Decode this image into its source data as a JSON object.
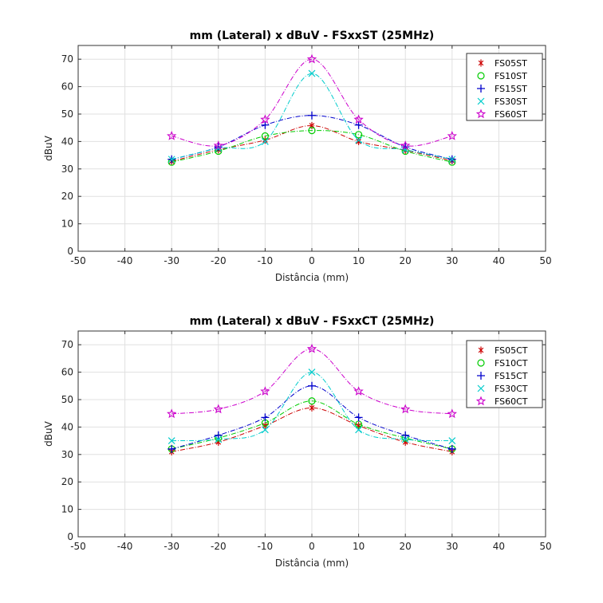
{
  "chart_data": [
    {
      "type": "line",
      "title": "mm (Lateral) x dBuV - FSxxST (25MHz)",
      "xlabel": "Distância (mm)",
      "ylabel": "dBuV",
      "xlim": [
        -50,
        50
      ],
      "ylim": [
        0,
        75
      ],
      "xticks": [
        -50,
        -40,
        -30,
        -20,
        -10,
        0,
        10,
        20,
        30,
        40,
        50
      ],
      "yticks": [
        0,
        10,
        20,
        30,
        40,
        50,
        60,
        70
      ],
      "grid": true,
      "legend_position": "top-right",
      "x": [
        -30,
        -20,
        -10,
        0,
        10,
        20,
        30
      ],
      "series": [
        {
          "name": "FS05ST",
          "values": [
            32.8,
            37.0,
            40.5,
            45.8,
            40.0,
            36.8,
            33.0
          ],
          "color": "#cc0000",
          "marker": "asterisk",
          "dash": "6 2 1 2"
        },
        {
          "name": "FS10ST",
          "values": [
            32.5,
            36.5,
            42.0,
            44.0,
            42.5,
            36.5,
            32.5
          ],
          "color": "#00cc00",
          "marker": "circle",
          "dash": "6 2 1 2"
        },
        {
          "name": "FS15ST",
          "values": [
            33.5,
            38.0,
            46.0,
            49.5,
            46.0,
            38.0,
            33.5
          ],
          "color": "#0000cc",
          "marker": "plus",
          "dash": "6 2 1 2"
        },
        {
          "name": "FS30ST",
          "values": [
            33.5,
            37.5,
            40.0,
            64.8,
            40.5,
            37.0,
            33.5
          ],
          "color": "#00cccc",
          "marker": "x",
          "dash": "6 2 1 2"
        },
        {
          "name": "FS60ST",
          "values": [
            42.0,
            38.5,
            48.0,
            70.0,
            48.0,
            38.5,
            42.0
          ],
          "color": "#cc00cc",
          "marker": "star",
          "dash": "6 2 1 2"
        }
      ]
    },
    {
      "type": "line",
      "title": "mm (Lateral) x dBuV - FSxxCT (25MHz)",
      "xlabel": "Distância (mm)",
      "ylabel": "dBuV",
      "xlim": [
        -50,
        50
      ],
      "ylim": [
        0,
        75
      ],
      "xticks": [
        -50,
        -40,
        -30,
        -20,
        -10,
        0,
        10,
        20,
        30,
        40,
        50
      ],
      "yticks": [
        0,
        10,
        20,
        30,
        40,
        50,
        60,
        70
      ],
      "grid": true,
      "legend_position": "top-right",
      "x": [
        -30,
        -20,
        -10,
        0,
        10,
        20,
        30
      ],
      "series": [
        {
          "name": "FS05CT",
          "values": [
            31.0,
            34.5,
            40.5,
            47.0,
            40.5,
            34.5,
            31.0
          ],
          "color": "#cc0000",
          "marker": "asterisk",
          "dash": "6 2 1 2"
        },
        {
          "name": "FS10CT",
          "values": [
            32.0,
            36.0,
            41.5,
            49.5,
            41.0,
            36.0,
            32.0
          ],
          "color": "#00cc00",
          "marker": "circle",
          "dash": "6 2 1 2"
        },
        {
          "name": "FS15CT",
          "values": [
            32.0,
            37.0,
            43.5,
            55.0,
            43.5,
            37.0,
            32.0
          ],
          "color": "#0000cc",
          "marker": "plus",
          "dash": "6 2 1 2"
        },
        {
          "name": "FS30CT",
          "values": [
            35.0,
            35.5,
            39.0,
            60.0,
            39.0,
            35.5,
            35.0
          ],
          "color": "#00cccc",
          "marker": "x",
          "dash": "6 2 1 2"
        },
        {
          "name": "FS60CT",
          "values": [
            44.8,
            46.5,
            53.0,
            68.5,
            53.0,
            46.5,
            44.8
          ],
          "color": "#cc00cc",
          "marker": "star",
          "dash": "6 2 1 2"
        }
      ]
    }
  ]
}
